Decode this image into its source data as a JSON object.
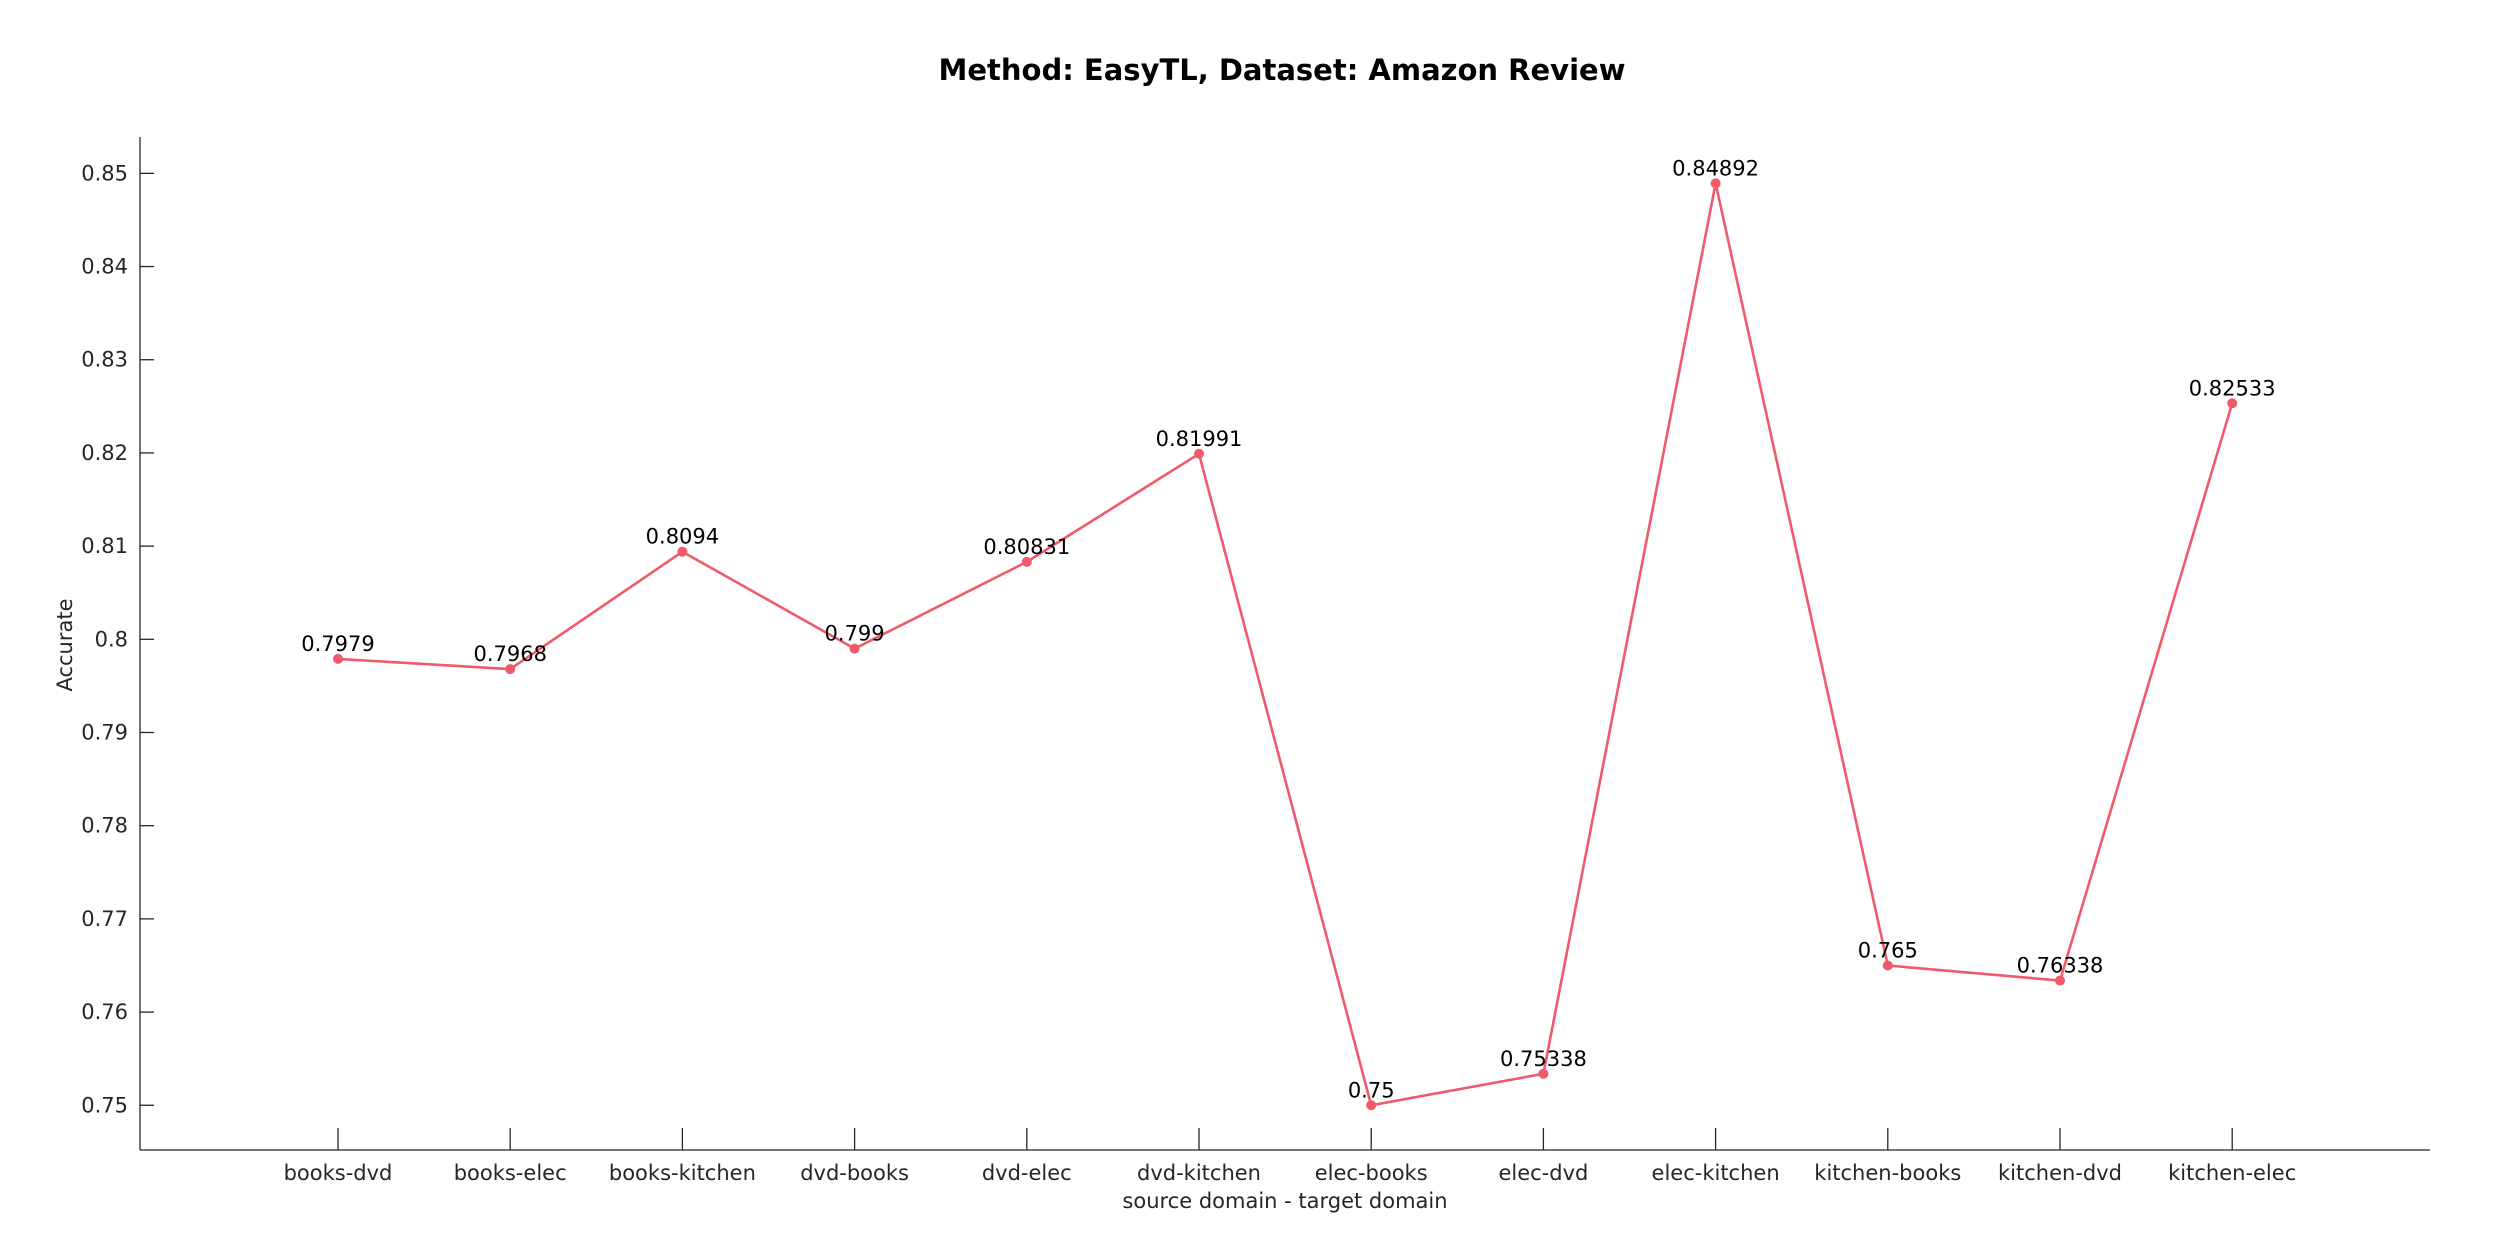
{
  "chart_data": {
    "type": "line",
    "title": "Method: EasyTL, Dataset: Amazon Review",
    "xlabel": "source domain - target domain",
    "ylabel": "Accurate",
    "categories": [
      "books-dvd",
      "books-elec",
      "books-kitchen",
      "dvd-books",
      "dvd-elec",
      "dvd-kitchen",
      "elec-books",
      "elec-dvd",
      "elec-kitchen",
      "kitchen-books",
      "kitchen-dvd",
      "kitchen-elec"
    ],
    "series": [
      {
        "values": [
          0.7979,
          0.7968,
          0.8094,
          0.799,
          0.80831,
          0.81991,
          0.75,
          0.75338,
          0.84892,
          0.765,
          0.76338,
          0.82533
        ],
        "labels": [
          "0.7979",
          "0.7968",
          "0.8094",
          "0.799",
          "0.80831",
          "0.81991",
          "0.75",
          "0.75338",
          "0.84892",
          "0.765",
          "0.76338",
          "0.82533"
        ],
        "color": "#f05a6a"
      }
    ],
    "yticks": [
      "0.75",
      "0.76",
      "0.77",
      "0.78",
      "0.79",
      "0.8",
      "0.81",
      "0.82",
      "0.83",
      "0.84",
      "0.85"
    ],
    "ylim": [
      0.7452,
      0.8539
    ],
    "grid": false,
    "legend": "none"
  }
}
